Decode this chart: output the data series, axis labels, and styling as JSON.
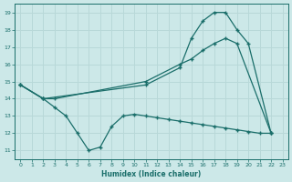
{
  "title": "",
  "xlabel": "Humidex (Indice chaleur)",
  "ylabel": "",
  "bg_color": "#cce8e8",
  "grid_color": "#b8d8d8",
  "line_color": "#1a6e6a",
  "xlim": [
    -0.5,
    23.5
  ],
  "ylim": [
    10.5,
    19.5
  ],
  "xticks": [
    0,
    1,
    2,
    3,
    4,
    5,
    6,
    7,
    8,
    9,
    10,
    11,
    12,
    13,
    14,
    15,
    16,
    17,
    18,
    19,
    20,
    21,
    22,
    23
  ],
  "yticks": [
    11,
    12,
    13,
    14,
    15,
    16,
    17,
    18,
    19
  ],
  "line1_x": [
    0,
    2,
    11,
    14,
    15,
    16,
    17,
    18,
    19,
    20,
    22
  ],
  "line1_y": [
    14.8,
    14.0,
    14.8,
    15.8,
    17.5,
    18.5,
    19.0,
    19.0,
    18.0,
    17.2,
    12.0
  ],
  "line2_x": [
    0,
    2,
    3,
    11,
    14,
    15,
    16,
    17,
    18,
    19,
    22
  ],
  "line2_y": [
    14.8,
    14.0,
    14.0,
    15.0,
    16.0,
    16.3,
    16.8,
    17.2,
    17.5,
    17.2,
    12.0
  ],
  "line3_x": [
    0,
    2,
    3,
    4,
    5,
    6,
    7,
    8,
    9,
    10,
    11,
    12,
    13,
    14,
    15,
    16,
    17,
    18,
    19,
    20,
    21,
    22
  ],
  "line3_y": [
    14.8,
    14.0,
    13.5,
    13.0,
    12.0,
    11.0,
    11.2,
    12.4,
    13.0,
    13.1,
    13.0,
    12.9,
    12.8,
    12.7,
    12.6,
    12.5,
    12.4,
    12.3,
    12.2,
    12.1,
    12.0,
    12.0
  ]
}
